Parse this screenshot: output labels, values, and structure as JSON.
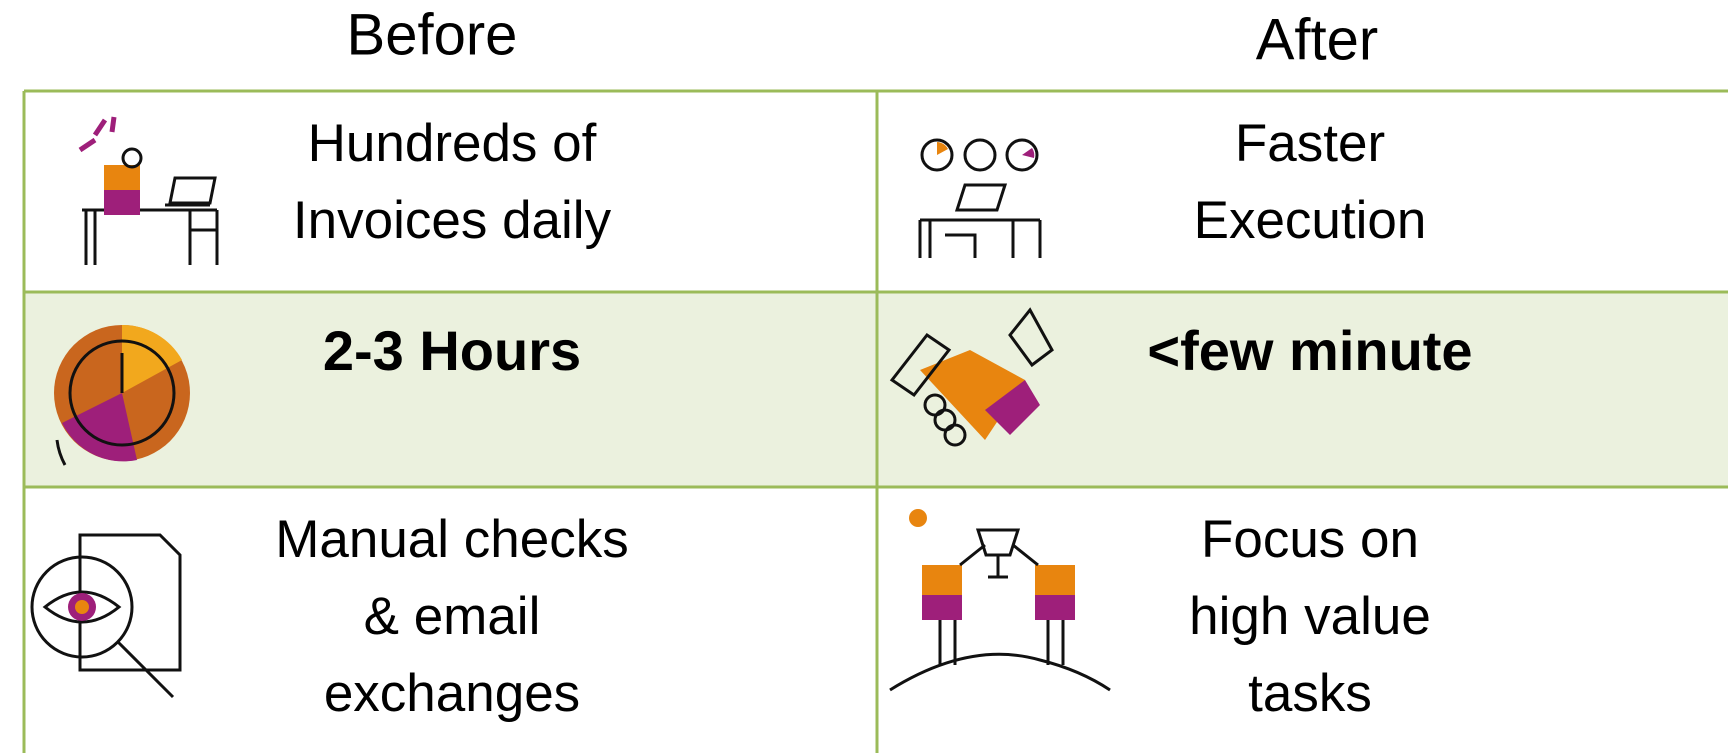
{
  "headers": [
    "Before",
    "After"
  ],
  "rows": [
    [
      {
        "lines": [
          "Hundreds of",
          "Invoices daily"
        ]
      },
      {
        "lines": [
          "Faster",
          "Execution"
        ]
      }
    ],
    [
      {
        "lines": [
          "2-3 Hours"
        ]
      },
      {
        "lines": [
          "<few minute"
        ]
      }
    ],
    [
      {
        "lines": [
          "Manual checks",
          "& email",
          "exchanges"
        ]
      },
      {
        "lines": [
          "Focus on",
          "high value",
          "tasks"
        ]
      }
    ]
  ]
}
